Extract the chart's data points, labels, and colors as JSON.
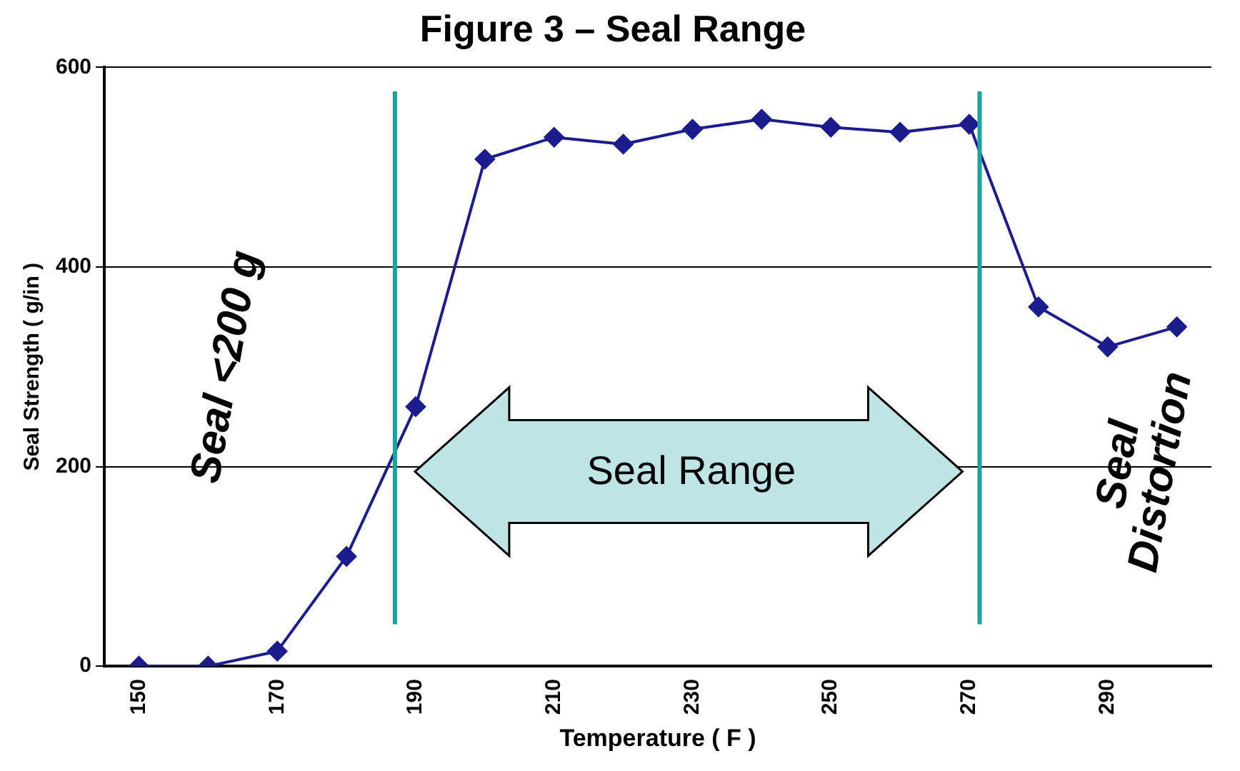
{
  "chart_data": {
    "type": "line",
    "title": "Figure 3 – Seal Range",
    "xlabel": "Temperature ( F )",
    "ylabel": "Seal Strength ( g/in )",
    "x": [
      150,
      160,
      170,
      180,
      190,
      200,
      210,
      220,
      230,
      240,
      250,
      260,
      270,
      280,
      290,
      300
    ],
    "series": [
      {
        "color": "#1c1c8f",
        "values": [
          0,
          0,
          15,
          110,
          260,
          508,
          530,
          523,
          538,
          548,
          540,
          535,
          543,
          360,
          320,
          340
        ]
      }
    ],
    "xlim": [
      145,
      305
    ],
    "xticks": [
      150,
      170,
      190,
      210,
      230,
      250,
      270,
      290
    ],
    "ylim": [
      0,
      600
    ],
    "yticks": [
      0,
      200,
      400,
      600
    ],
    "ref_lines": [
      {
        "axis": "x",
        "value": 187,
        "color": "#1aa3a0"
      },
      {
        "axis": "x",
        "value": 271.5,
        "color": "#1aa3a0"
      }
    ],
    "annotations": [
      "Seal <200 g",
      "Seal Range",
      "Seal Distortion"
    ],
    "grid": "y",
    "legend": false,
    "marker": "diamond",
    "line_style": "solid"
  }
}
